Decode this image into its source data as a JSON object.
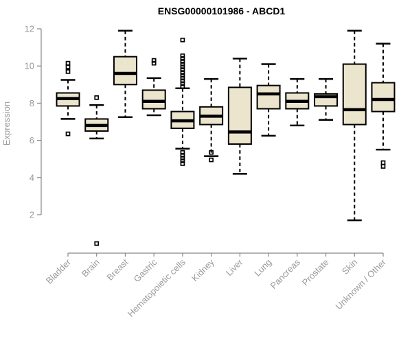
{
  "chart_data": {
    "type": "boxplot",
    "title": "ENSG00000101986 - ABCD1",
    "ylabel": "Expression",
    "xlabel": "",
    "ylim": [
      2,
      12
    ],
    "yticks": [
      2,
      4,
      6,
      8,
      10,
      12
    ],
    "grid": false,
    "legend": "none",
    "categories": [
      "Bladder",
      "Brain",
      "Breast",
      "Gastric",
      "Hematopoietic cells",
      "Kidney",
      "Liver",
      "Lung",
      "Pancreas",
      "Prostate",
      "Skin",
      "Unknown / Other"
    ],
    "series": [
      {
        "name": "Bladder",
        "whisker_low": 7.15,
        "q1": 7.85,
        "median": 8.25,
        "q3": 8.55,
        "whisker_high": 9.25,
        "outliers": [
          10.15,
          9.95,
          9.7,
          6.35
        ]
      },
      {
        "name": "Brain",
        "whisker_low": 6.1,
        "q1": 6.5,
        "median": 6.8,
        "q3": 7.15,
        "whisker_high": 7.9,
        "outliers": [
          8.3,
          0.45
        ]
      },
      {
        "name": "Breast",
        "whisker_low": 7.25,
        "q1": 9.0,
        "median": 9.6,
        "q3": 10.5,
        "whisker_high": 11.9,
        "outliers": []
      },
      {
        "name": "Gastric",
        "whisker_low": 7.35,
        "q1": 7.7,
        "median": 8.1,
        "q3": 8.7,
        "whisker_high": 9.35,
        "outliers": [
          10.3,
          10.15
        ]
      },
      {
        "name": "Hematopoietic cells",
        "whisker_low": 5.55,
        "q1": 6.65,
        "median": 7.05,
        "q3": 7.55,
        "whisker_high": 8.8,
        "outliers": [
          11.4,
          10.55,
          10.4,
          10.25,
          10.1,
          9.95,
          9.8,
          9.65,
          9.5,
          9.35,
          9.2,
          9.05,
          8.9,
          5.35,
          5.2,
          5.05,
          4.9,
          4.75
        ]
      },
      {
        "name": "Kidney",
        "whisker_low": 5.15,
        "q1": 6.85,
        "median": 7.3,
        "q3": 7.8,
        "whisker_high": 9.3,
        "outliers": [
          5.35,
          4.95
        ]
      },
      {
        "name": "Liver",
        "whisker_low": 4.2,
        "q1": 5.8,
        "median": 6.45,
        "q3": 8.85,
        "whisker_high": 10.4,
        "outliers": []
      },
      {
        "name": "Lung",
        "whisker_low": 6.25,
        "q1": 7.7,
        "median": 8.5,
        "q3": 8.95,
        "whisker_high": 10.1,
        "outliers": []
      },
      {
        "name": "Pancreas",
        "whisker_low": 6.8,
        "q1": 7.7,
        "median": 8.1,
        "q3": 8.55,
        "whisker_high": 9.3,
        "outliers": []
      },
      {
        "name": "Prostate",
        "whisker_low": 7.1,
        "q1": 7.85,
        "median": 8.35,
        "q3": 8.5,
        "whisker_high": 9.3,
        "outliers": []
      },
      {
        "name": "Skin",
        "whisker_low": 1.7,
        "q1": 6.85,
        "median": 7.65,
        "q3": 10.1,
        "whisker_high": 11.9,
        "outliers": []
      },
      {
        "name": "Unknown / Other",
        "whisker_low": 5.5,
        "q1": 7.55,
        "median": 8.2,
        "q3": 9.1,
        "whisker_high": 11.2,
        "outliers": [
          4.8,
          4.6
        ]
      }
    ]
  },
  "colors": {
    "box_fill": "#ece5cd",
    "box_stroke": "#000000",
    "median": "#000000",
    "axis_line": "#878787",
    "axis_text": "#9a9a9a",
    "title_text": "#000000",
    "background": "#ffffff"
  }
}
